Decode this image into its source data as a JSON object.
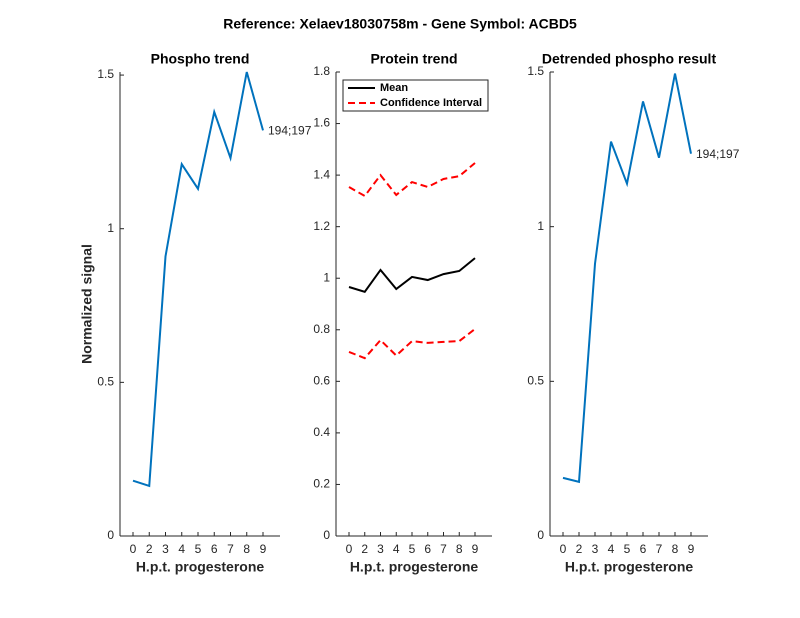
{
  "title": "Reference:  Xelaev18030758m - Gene Symbol:  ACBD5",
  "chart_data": [
    {
      "type": "line",
      "title": "Phospho trend",
      "xlabel": "H.p.t. progesterone",
      "ylabel": "Normalized signal",
      "categories": [
        "0",
        "2",
        "3",
        "4",
        "5",
        "6",
        "7",
        "8",
        "9"
      ],
      "series": [
        {
          "color": "#0072bd",
          "values": [
            0.18,
            0.163,
            0.91,
            1.21,
            1.13,
            1.38,
            1.23,
            1.51,
            1.32
          ]
        }
      ],
      "annotation": "194;197",
      "ylim": [
        0,
        1.51
      ],
      "yticks": [
        0,
        0.5,
        1,
        1.5
      ]
    },
    {
      "type": "line",
      "title": "Protein trend",
      "xlabel": "H.p.t. progesterone",
      "categories": [
        "0",
        "2",
        "3",
        "4",
        "5",
        "6",
        "7",
        "8",
        "9"
      ],
      "series": [
        {
          "name": "Mean",
          "color": "#000000",
          "values": [
            0.966,
            0.947,
            1.032,
            0.958,
            1.005,
            0.993,
            1.016,
            1.028,
            1.078
          ]
        },
        {
          "name": "Confidence Interval",
          "color": "#ff0000",
          "dashed": true,
          "upper": [
            1.354,
            1.319,
            1.4,
            1.323,
            1.373,
            1.354,
            1.385,
            1.396,
            1.447
          ],
          "lower": [
            0.714,
            0.69,
            0.76,
            0.7,
            0.756,
            0.749,
            0.753,
            0.756,
            0.803
          ]
        }
      ],
      "legend": "upper left",
      "ylim": [
        0,
        1.8
      ],
      "yticks": [
        0,
        0.2,
        0.4,
        0.6,
        0.8,
        1,
        1.2,
        1.4,
        1.6,
        1.8
      ]
    },
    {
      "type": "line",
      "title": "Detrended phospho result",
      "xlabel": "H.p.t. progesterone",
      "categories": [
        "0",
        "2",
        "3",
        "4",
        "5",
        "6",
        "7",
        "8",
        "9"
      ],
      "series": [
        {
          "color": "#0072bd",
          "values": [
            0.188,
            0.175,
            0.88,
            1.275,
            1.139,
            1.405,
            1.223,
            1.495,
            1.236
          ]
        }
      ],
      "annotation": "194;197",
      "ylim": [
        0,
        1.5
      ],
      "yticks": [
        0,
        0.5,
        1,
        1.5
      ]
    }
  ]
}
